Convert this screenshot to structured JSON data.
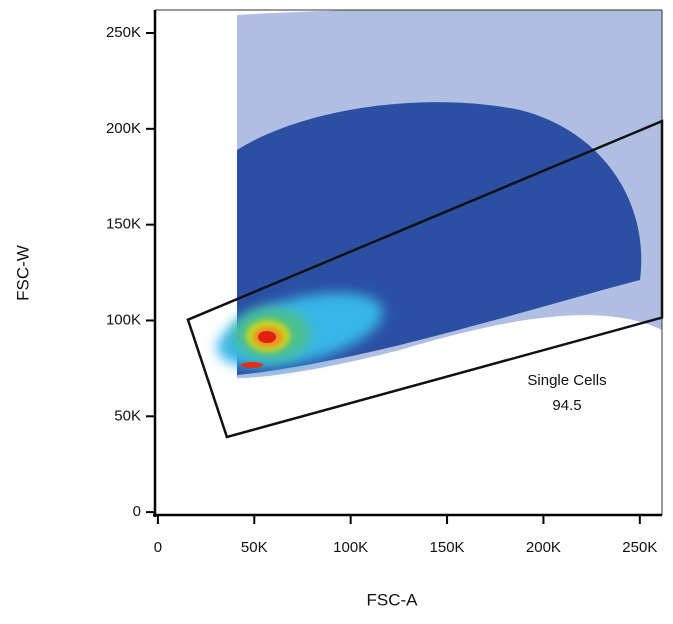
{
  "chart_data": {
    "type": "density-scatter",
    "xlabel": "FSC-A",
    "ylabel": "FSC-W",
    "xlim": [
      -1500,
      261500
    ],
    "ylim": [
      -1500,
      262000
    ],
    "xticks": [
      0,
      {
        "value": 50000,
        "label": "50K"
      },
      {
        "value": 100000,
        "label": "100K"
      },
      {
        "value": 150000,
        "label": "150K"
      },
      {
        "value": 200000,
        "label": "200K"
      },
      {
        "value": 250000,
        "label": "250K"
      }
    ],
    "yticks": [
      0,
      {
        "value": 50000,
        "label": "50K"
      },
      {
        "value": 100000,
        "label": "100K"
      },
      {
        "value": 150000,
        "label": "150K"
      },
      {
        "value": 200000,
        "label": "200K"
      },
      {
        "value": 250000,
        "label": "250K"
      }
    ],
    "gate": {
      "name": "Single Cells",
      "value": 94.5,
      "color": "#111111",
      "x": [
        15600,
        261500,
        261500,
        35800
      ],
      "y": [
        100400,
        204000,
        101500,
        39200
      ]
    }
  }
}
